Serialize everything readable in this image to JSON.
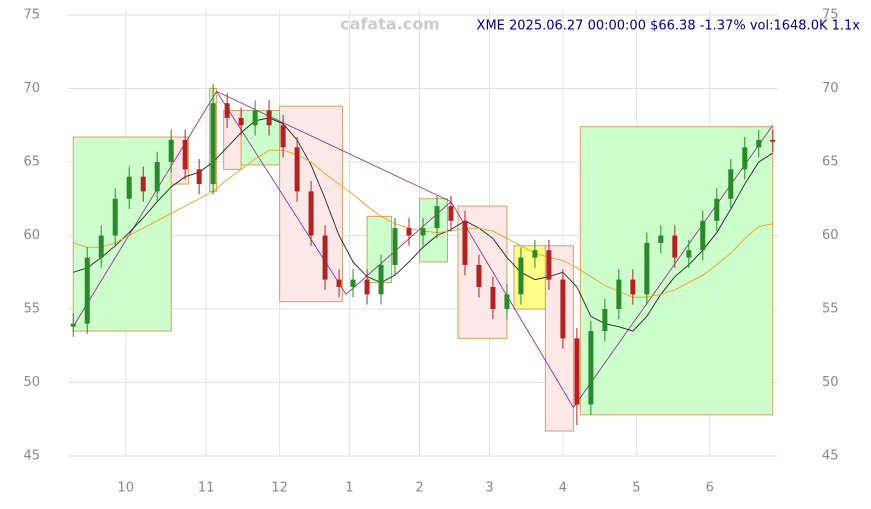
{
  "chart_data": {
    "type": "candlestick",
    "watermark": "cafata.com",
    "title": "XME 2025.06.27 00:00:00 $66.38 -1.37% vol:1648.0K 1.1x",
    "x": [
      0,
      4,
      8,
      12,
      16,
      20,
      24,
      28,
      32,
      36,
      40,
      44,
      48,
      52,
      56,
      60,
      64,
      68,
      72,
      76,
      80,
      84,
      88,
      92,
      96,
      100,
      104,
      108,
      112,
      116,
      120,
      124,
      128,
      132,
      136,
      140,
      144,
      148,
      152,
      156,
      160,
      164,
      168,
      172,
      176,
      180,
      184,
      188,
      192,
      196,
      200
    ],
    "open": [
      53.8,
      54,
      58.5,
      60,
      62.5,
      64,
      63,
      65,
      66.5,
      64.5,
      63.5,
      69,
      68,
      67.5,
      68.5,
      67.5,
      66,
      63,
      60,
      57,
      56.5,
      57,
      56,
      58,
      60.5,
      60,
      60.5,
      62,
      61,
      58,
      56.5,
      55,
      56,
      58.5,
      59,
      57,
      53,
      48.5,
      53.5,
      55,
      57,
      56,
      59.5,
      60,
      58.5,
      59,
      61,
      62.5,
      64.5,
      66,
      66.5
    ],
    "high": [
      54.7,
      59.2,
      60.7,
      63.2,
      64.7,
      64.7,
      65.7,
      67.2,
      67.2,
      65.2,
      70.3,
      69.7,
      68.7,
      69.2,
      69.2,
      68.2,
      66.7,
      63.7,
      60.7,
      57.7,
      57.7,
      57.7,
      58.7,
      61.2,
      61.2,
      61.2,
      62.7,
      62.7,
      61.7,
      58.7,
      57.2,
      56.7,
      59.2,
      59.7,
      59.7,
      57.7,
      53.7,
      54.2,
      55.7,
      57.7,
      57.7,
      60.2,
      60.7,
      60.7,
      59.7,
      61.7,
      63.2,
      65.2,
      66.7,
      67.2,
      67.2
    ],
    "low": [
      53.1,
      53.3,
      57.8,
      59.3,
      61.8,
      62.3,
      62.3,
      64.3,
      63.8,
      62.8,
      62.8,
      67.3,
      66.8,
      66.8,
      66.8,
      65.3,
      62.3,
      59.3,
      56.3,
      55.8,
      55.8,
      55.3,
      55.3,
      57.3,
      59.3,
      59.3,
      59.8,
      60.3,
      57.3,
      55.8,
      54.3,
      54.3,
      55.3,
      57.8,
      56.3,
      52.3,
      47.1,
      47.8,
      52.8,
      54.3,
      55.3,
      55.3,
      58.8,
      57.8,
      57.8,
      58.3,
      60.3,
      61.8,
      63.8,
      65.3,
      65.7
    ],
    "close": [
      54,
      58.5,
      60,
      62.5,
      64,
      63,
      65,
      66.5,
      64.5,
      63.5,
      69,
      68,
      67.5,
      68.5,
      67.5,
      66,
      63,
      60,
      57,
      56.5,
      57,
      56,
      58,
      60.5,
      60,
      60.5,
      62,
      61,
      58,
      56.5,
      55,
      56,
      58.5,
      59,
      57,
      53,
      48.5,
      53.5,
      55,
      57,
      56,
      59.5,
      60,
      58.5,
      59,
      61,
      62.5,
      64.5,
      66,
      66.5,
      66.38
    ],
    "up_color": "#2a8a2a",
    "down_color": "#b22222",
    "lines": [
      {
        "color": "#222222",
        "values": [
          57.5,
          57.8,
          58.5,
          59.3,
          60.2,
          61.2,
          62.3,
          63.3,
          64,
          64.3,
          65,
          66,
          67,
          67.8,
          68,
          67.6,
          66.5,
          64.8,
          62.5,
          60,
          58.2,
          57.2,
          56.8,
          57.3,
          58.2,
          59.2,
          60,
          60.4,
          61,
          60.5,
          59.8,
          58.5,
          57.5,
          57,
          57.2,
          57.5,
          56.5,
          54.5,
          54,
          53.8,
          53.5,
          54.5,
          56,
          57.2,
          58,
          59,
          60.2,
          61.8,
          63.5,
          65,
          65.6
        ]
      },
      {
        "color": "#f0a020",
        "values": [
          59.5,
          59.2,
          59.2,
          59.5,
          60,
          60.5,
          61,
          61.5,
          62,
          62.5,
          63,
          63.8,
          64.5,
          65.2,
          65.8,
          65.8,
          65.5,
          65,
          64.2,
          63.5,
          62.8,
          62,
          61.3,
          60.8,
          60.5,
          60.3,
          60.2,
          60.3,
          60.5,
          60.5,
          60.3,
          59.8,
          59.3,
          58.8,
          58.5,
          58.3,
          57.8,
          57.2,
          56.6,
          56.2,
          55.8,
          55.8,
          56,
          56.3,
          56.8,
          57.3,
          58,
          58.8,
          59.8,
          60.6,
          60.8
        ]
      }
    ],
    "boxes": [
      {
        "x": [
          0,
          28
        ],
        "y": [
          53.5,
          66.7
        ],
        "color": "#ccffcc"
      },
      {
        "x": [
          28,
          33
        ],
        "y": [
          63.5,
          66.7
        ],
        "color": "#fde8e8"
      },
      {
        "x": [
          39,
          41
        ],
        "y": [
          63,
          70
        ],
        "color": "#ccffcc"
      },
      {
        "x": [
          43,
          48
        ],
        "y": [
          64.5,
          68.5
        ],
        "color": "#fde8e8"
      },
      {
        "x": [
          48,
          59
        ],
        "y": [
          64.8,
          68.5
        ],
        "color": "#ccffcc"
      },
      {
        "x": [
          59,
          77
        ],
        "y": [
          55.5,
          68.8
        ],
        "color": "#fde8e8"
      },
      {
        "x": [
          84,
          91
        ],
        "y": [
          56.8,
          61.3
        ],
        "color": "#ccffcc"
      },
      {
        "x": [
          99,
          107
        ],
        "y": [
          58.2,
          62.5
        ],
        "color": "#ccffcc"
      },
      {
        "x": [
          110,
          124
        ],
        "y": [
          53,
          62
        ],
        "color": "#fde8e8"
      },
      {
        "x": [
          126,
          135
        ],
        "y": [
          55,
          59.3
        ],
        "color": "#ffff88"
      },
      {
        "x": [
          135,
          143
        ],
        "y": [
          46.7,
          59.3
        ],
        "color": "#fde8e8"
      },
      {
        "x": [
          145,
          200
        ],
        "y": [
          47.8,
          67.4
        ],
        "color": "#ccffcc"
      }
    ],
    "trendlines": [
      {
        "x": [
          0,
          41
        ],
        "y": [
          53.8,
          69.8
        ]
      },
      {
        "x": [
          41,
          108
        ],
        "y": [
          69.8,
          62.3
        ]
      },
      {
        "x": [
          108,
          143
        ],
        "y": [
          62.3,
          48.3
        ]
      },
      {
        "x": [
          41,
          78
        ],
        "y": [
          69.8,
          56
        ]
      },
      {
        "x": [
          78,
          108
        ],
        "y": [
          56,
          62.3
        ]
      },
      {
        "x": [
          143,
          200
        ],
        "y": [
          48.3,
          67.5
        ]
      }
    ],
    "trend_color": "#882288",
    "xlim": [
      -1.5,
      201.5
    ],
    "xticks": [
      {
        "value": 15,
        "label": "10"
      },
      {
        "value": 38,
        "label": "11"
      },
      {
        "value": 59,
        "label": "12"
      },
      {
        "value": 79,
        "label": "1"
      },
      {
        "value": 99,
        "label": "2"
      },
      {
        "value": 119,
        "label": "3"
      },
      {
        "value": 140,
        "label": "4"
      },
      {
        "value": 161,
        "label": "5"
      },
      {
        "value": 182,
        "label": "6"
      }
    ],
    "ylim": [
      45,
      75
    ],
    "yticks": [
      45,
      50,
      55,
      60,
      65,
      70,
      75
    ],
    "grid": true
  }
}
